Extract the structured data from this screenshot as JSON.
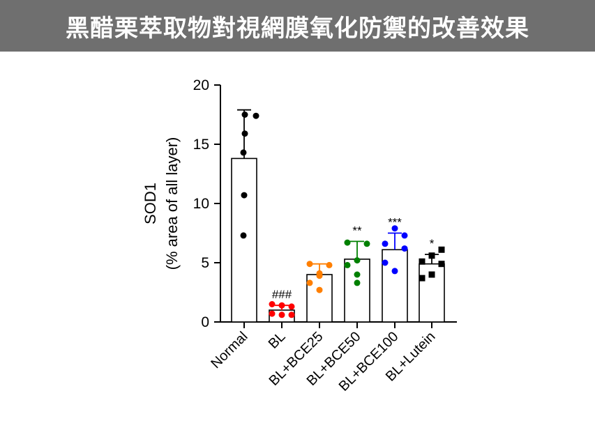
{
  "header": {
    "title": "黑醋栗萃取物對視網膜氧化防禦的改善效果"
  },
  "chart_data": {
    "type": "bar",
    "ylabel_line1": "SOD1",
    "ylabel_line2": "(% area of all layer)",
    "ylim": [
      0,
      20
    ],
    "yticks": [
      0,
      5,
      10,
      15,
      20
    ],
    "grid": false,
    "categories": [
      "Normal",
      "BL",
      "BL+BCE25",
      "BL+BCE50",
      "BL+BCE100",
      "BL+Lutein"
    ],
    "bars": [
      {
        "mean": 13.8,
        "sd": 4.1,
        "color": "#000000",
        "marker": "circle",
        "annotation": "",
        "points": [
          17.5,
          17.4,
          15.9,
          14.3,
          10.7,
          7.3
        ]
      },
      {
        "mean": 1.0,
        "sd": 0.4,
        "color": "#ff0000",
        "marker": "circle",
        "annotation": "###",
        "points": [
          1.5,
          1.4,
          1.3,
          0.7,
          0.6,
          0.6
        ]
      },
      {
        "mean": 4.0,
        "sd": 0.9,
        "color": "#ff7f00",
        "marker": "circle",
        "annotation": "",
        "points": [
          4.9,
          4.8,
          4.1,
          3.9,
          3.3,
          2.7
        ]
      },
      {
        "mean": 5.3,
        "sd": 1.5,
        "color": "#008000",
        "marker": "circle",
        "annotation": "**",
        "points": [
          6.7,
          6.6,
          5.2,
          4.8,
          4.0,
          3.3
        ]
      },
      {
        "mean": 6.1,
        "sd": 1.4,
        "color": "#0000ff",
        "marker": "circle",
        "annotation": "***",
        "points": [
          7.9,
          7.3,
          6.6,
          6.2,
          5.0,
          4.3
        ]
      },
      {
        "mean": 4.9,
        "sd": 0.8,
        "color": "#000000",
        "marker": "square",
        "annotation": "*",
        "points": [
          6.1,
          5.6,
          5.1,
          4.9,
          4.0,
          3.7
        ]
      }
    ]
  }
}
